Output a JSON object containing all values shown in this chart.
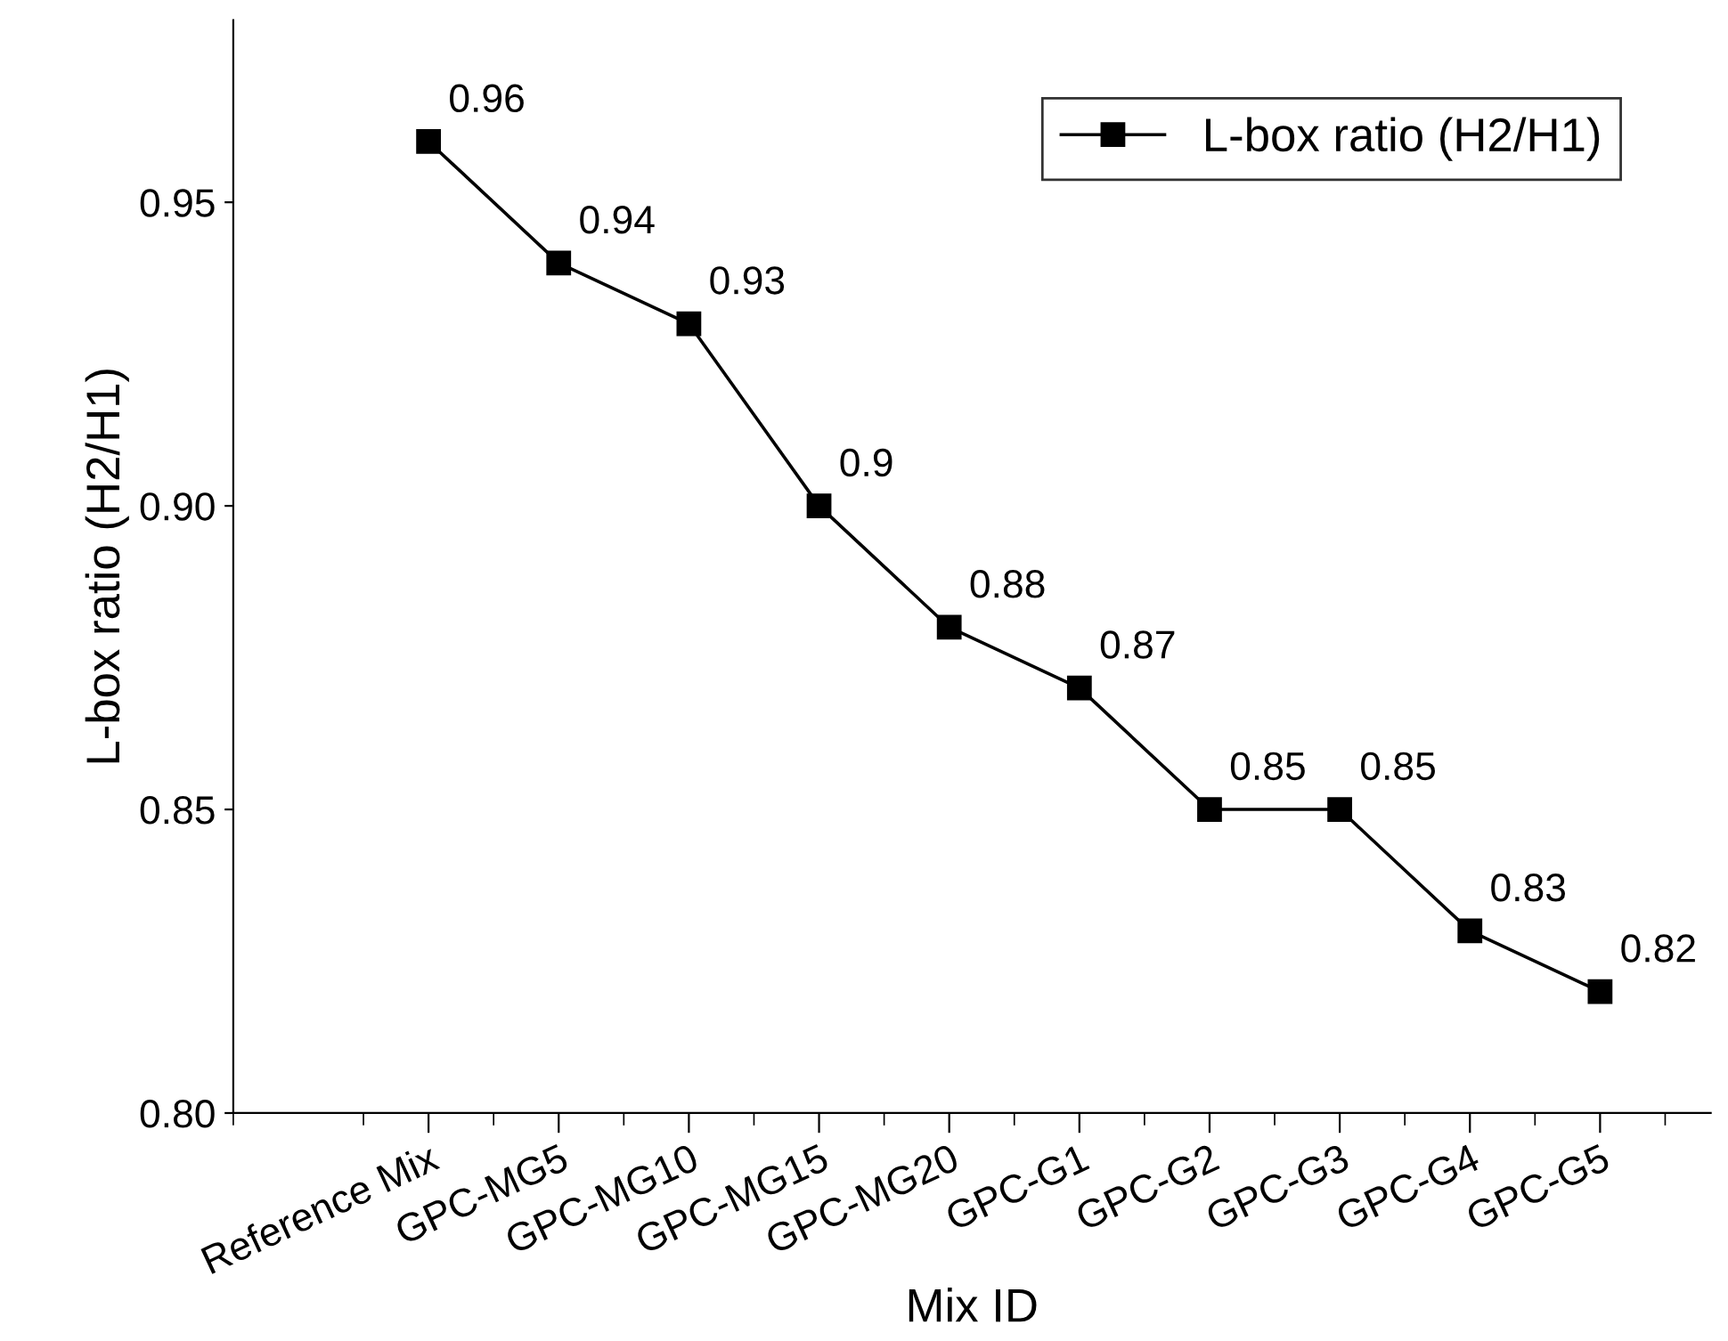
{
  "chart_data": {
    "type": "line",
    "xlabel": "Mix ID",
    "ylabel": "L-box ratio (H2/H1)",
    "categories": [
      "Reference Mix",
      "GPC-MG5",
      "GPC-MG10",
      "GPC-MG15",
      "GPC-MG20",
      "GPC-G1",
      "GPC-G2",
      "GPC-G3",
      "GPC-G4",
      "GPC-G5"
    ],
    "series": [
      {
        "name": "L-box ratio (H2/H1)",
        "color": "#000000",
        "values": [
          0.96,
          0.94,
          0.93,
          0.9,
          0.88,
          0.87,
          0.85,
          0.85,
          0.83,
          0.82
        ]
      }
    ],
    "ylim": [
      0.8,
      0.98
    ],
    "yticks": [
      {
        "value": 0.8,
        "label": "0.80"
      },
      {
        "value": 0.85,
        "label": "0.85"
      },
      {
        "value": 0.9,
        "label": "0.90"
      },
      {
        "value": 0.95,
        "label": "0.95"
      }
    ],
    "data_labels": true,
    "marker": "square",
    "line_style": "solid",
    "legend": "top right",
    "grid": false
  }
}
